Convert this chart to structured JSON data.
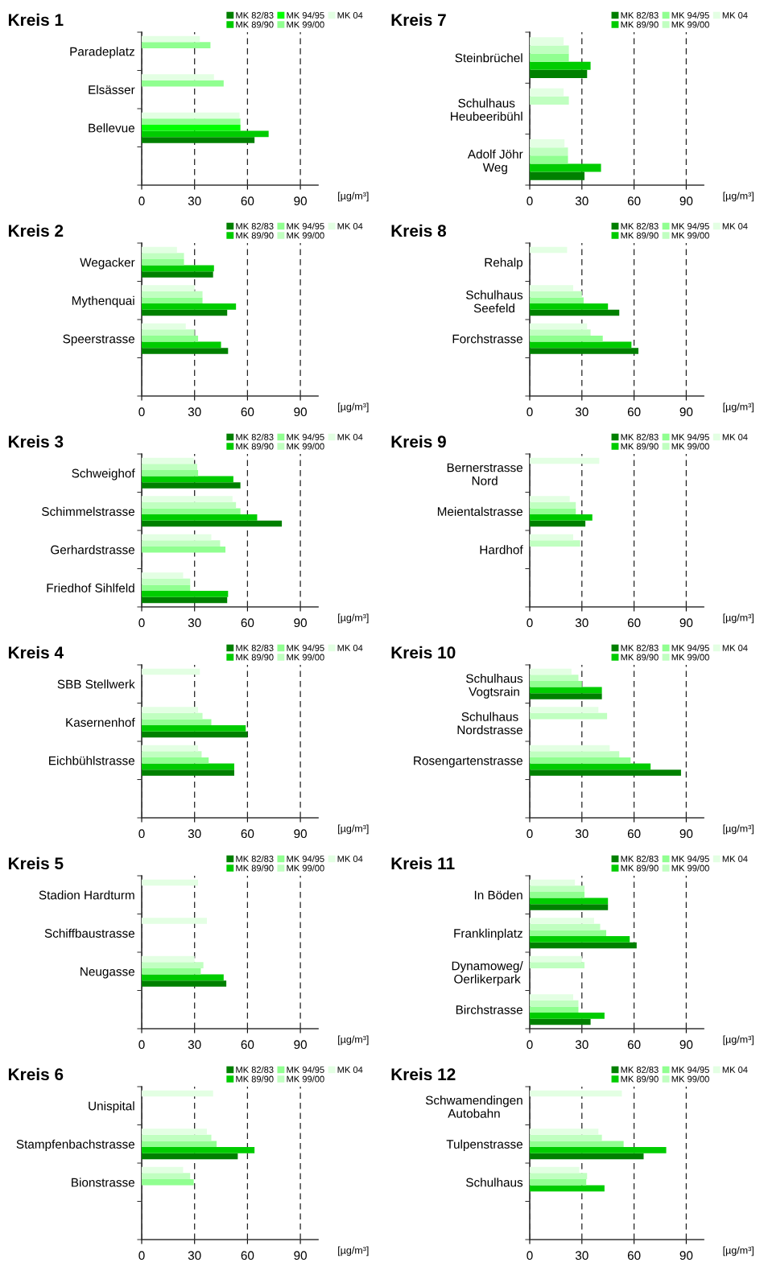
{
  "chart_data": [
    {
      "type": "bar",
      "orientation": "horizontal",
      "title": "Kreis 1",
      "xlabel": "[µg/m³]",
      "categories": [
        "Paradeplatz",
        "Elsässer",
        "Bellevue",
        null
      ],
      "xlim": [
        0,
        100
      ],
      "xticks": [
        0,
        30,
        60,
        90
      ],
      "grid": "x",
      "legend": "top right",
      "series": [
        {
          "name": "MK 82/83",
          "color": "#008000",
          "values": [
            null,
            null,
            64,
            null
          ]
        },
        {
          "name": "MK 89/90",
          "color": "#00cc00",
          "values": [
            null,
            null,
            72,
            null
          ]
        },
        {
          "name": "MK 94/95",
          "color": "#00ff00",
          "values": [
            null,
            null,
            56,
            null
          ]
        },
        {
          "name": "MK 99/00",
          "color": "#90ff90",
          "values": [
            39,
            46.5,
            56,
            null
          ]
        },
        {
          "name": "MK 04",
          "color": "#e3ffe3",
          "values": [
            33,
            41,
            55.5,
            null
          ]
        }
      ]
    },
    {
      "type": "bar",
      "orientation": "horizontal",
      "title": "Kreis 7",
      "xlabel": "[µg/m³]",
      "categories": [
        "Steinbrüchel",
        "Schulhaus\nHeubeeribühl",
        "Adolf Jöhr\nWeg"
      ],
      "xlim": [
        0,
        100
      ],
      "xticks": [
        0,
        30,
        60,
        90
      ],
      "grid": "x",
      "legend": "top right",
      "series": [
        {
          "name": "MK 82/83",
          "color": "#008000",
          "values": [
            33,
            null,
            31.5
          ]
        },
        {
          "name": "MK 89/90",
          "color": "#00cc00",
          "values": [
            35,
            null,
            41
          ]
        },
        {
          "name": "MK 94/95",
          "color": "#90ff90",
          "values": [
            22.5,
            null,
            22
          ]
        },
        {
          "name": "MK 99/00",
          "color": "#c0ffc0",
          "values": [
            22.5,
            22.5,
            22
          ]
        },
        {
          "name": "MK 04",
          "color": "#e3ffe3",
          "values": [
            19.5,
            19.5,
            20
          ]
        }
      ]
    },
    {
      "type": "bar",
      "orientation": "horizontal",
      "title": "Kreis 2",
      "xlabel": "[µg/m³]",
      "categories": [
        "Wegacker",
        "Mythenquai",
        "Speerstrasse",
        null
      ],
      "xlim": [
        0,
        100
      ],
      "xticks": [
        0,
        30,
        60,
        90
      ],
      "grid": "x",
      "legend": "top right",
      "series": [
        {
          "name": "MK 82/83",
          "color": "#008000",
          "values": [
            40.5,
            48.5,
            49,
            null
          ]
        },
        {
          "name": "MK 89/90",
          "color": "#00cc00",
          "values": [
            41,
            53.5,
            45,
            null
          ]
        },
        {
          "name": "MK 94/95",
          "color": "#90ff90",
          "values": [
            24,
            34.5,
            32,
            null
          ]
        },
        {
          "name": "MK 99/00",
          "color": "#c0ffc0",
          "values": [
            24,
            34.5,
            30,
            null
          ]
        },
        {
          "name": "MK 04",
          "color": "#e3ffe3",
          "values": [
            20,
            30,
            25,
            null
          ]
        }
      ]
    },
    {
      "type": "bar",
      "orientation": "horizontal",
      "title": "Kreis 8",
      "xlabel": "[µg/m³]",
      "categories": [
        "Rehalp",
        "Schulhaus\nSeefeld",
        "Forchstrasse",
        null
      ],
      "xlim": [
        0,
        100
      ],
      "xticks": [
        0,
        30,
        60,
        90
      ],
      "grid": "x",
      "legend": "top right",
      "series": [
        {
          "name": "MK 82/83",
          "color": "#008000",
          "values": [
            null,
            51.5,
            62.5,
            null
          ]
        },
        {
          "name": "MK 89/90",
          "color": "#00cc00",
          "values": [
            null,
            45,
            58.5,
            null
          ]
        },
        {
          "name": "MK 94/95",
          "color": "#90ff90",
          "values": [
            null,
            31,
            42,
            null
          ]
        },
        {
          "name": "MK 99/00",
          "color": "#c0ffc0",
          "values": [
            null,
            30,
            35,
            null
          ]
        },
        {
          "name": "MK 04",
          "color": "#e3ffe3",
          "values": [
            21.5,
            25,
            33,
            null
          ]
        }
      ]
    },
    {
      "type": "bar",
      "orientation": "horizontal",
      "title": "Kreis 3",
      "xlabel": "[µg/m³]",
      "categories": [
        "Schweighof",
        "Schimmelstrasse",
        "Gerhardstrasse",
        "Friedhof Sihlfeld"
      ],
      "xlim": [
        0,
        100
      ],
      "xticks": [
        0,
        30,
        60,
        90
      ],
      "grid": "x",
      "legend": "top right",
      "series": [
        {
          "name": "MK 82/83",
          "color": "#008000",
          "values": [
            56,
            79.5,
            null,
            48.5
          ]
        },
        {
          "name": "MK 89/90",
          "color": "#00cc00",
          "values": [
            52,
            65.5,
            null,
            49
          ]
        },
        {
          "name": "MK 94/95",
          "color": "#90ff90",
          "values": [
            32,
            56,
            47.5,
            27.5
          ]
        },
        {
          "name": "MK 99/00",
          "color": "#c0ffc0",
          "values": [
            31.5,
            53.5,
            44.5,
            27.5
          ]
        },
        {
          "name": "MK 04",
          "color": "#e3ffe3",
          "values": [
            29.5,
            51.5,
            39.5,
            23.5
          ]
        }
      ]
    },
    {
      "type": "bar",
      "orientation": "horizontal",
      "title": "Kreis 9",
      "xlabel": "[µg/m³]",
      "categories": [
        "Bernerstrasse\nNord",
        "Meientalstrasse",
        "Hardhof",
        null
      ],
      "xlim": [
        0,
        100
      ],
      "xticks": [
        0,
        30,
        60,
        90
      ],
      "grid": "x",
      "legend": "top right",
      "series": [
        {
          "name": "MK 82/83",
          "color": "#008000",
          "values": [
            null,
            32,
            null,
            null
          ]
        },
        {
          "name": "MK 89/90",
          "color": "#00cc00",
          "values": [
            null,
            36,
            null,
            null
          ]
        },
        {
          "name": "MK 94/95",
          "color": "#90ff90",
          "values": [
            null,
            26.5,
            null,
            null
          ]
        },
        {
          "name": "MK 99/00",
          "color": "#c0ffc0",
          "values": [
            null,
            26.5,
            29,
            null
          ]
        },
        {
          "name": "MK 04",
          "color": "#e3ffe3",
          "values": [
            40,
            23,
            25,
            null
          ]
        }
      ]
    },
    {
      "type": "bar",
      "orientation": "horizontal",
      "title": "Kreis 4",
      "xlabel": "[µg/m³]",
      "categories": [
        "SBB Stellwerk",
        "Kasernenhof",
        "Eichbühlstrasse",
        null
      ],
      "xlim": [
        0,
        100
      ],
      "xticks": [
        0,
        30,
        60,
        90
      ],
      "grid": "x",
      "legend": "top right",
      "series": [
        {
          "name": "MK 82/83",
          "color": "#008000",
          "values": [
            null,
            60,
            52.5,
            null
          ]
        },
        {
          "name": "MK 89/90",
          "color": "#00cc00",
          "values": [
            null,
            59,
            52.5,
            null
          ]
        },
        {
          "name": "MK 94/95",
          "color": "#90ff90",
          "values": [
            null,
            39.5,
            38,
            null
          ]
        },
        {
          "name": "MK 99/00",
          "color": "#c0ffc0",
          "values": [
            null,
            34.5,
            34,
            null
          ]
        },
        {
          "name": "MK 04",
          "color": "#e3ffe3",
          "values": [
            33,
            32,
            32,
            null
          ]
        }
      ]
    },
    {
      "type": "bar",
      "orientation": "horizontal",
      "title": "Kreis 10",
      "xlabel": "[µg/m³]",
      "categories": [
        "Schulhaus\nVogtsrain",
        "Schulhaus\nNordstrasse",
        "Rosengartenstrasse",
        null
      ],
      "xlim": [
        0,
        100
      ],
      "xticks": [
        0,
        30,
        60,
        90
      ],
      "grid": "x",
      "legend": "top right",
      "series": [
        {
          "name": "MK 82/83",
          "color": "#008000",
          "values": [
            41.5,
            null,
            87,
            null
          ]
        },
        {
          "name": "MK 89/90",
          "color": "#00cc00",
          "values": [
            41.5,
            null,
            69.5,
            null
          ]
        },
        {
          "name": "MK 94/95",
          "color": "#90ff90",
          "values": [
            30,
            null,
            58,
            null
          ]
        },
        {
          "name": "MK 99/00",
          "color": "#c0ffc0",
          "values": [
            28,
            44.5,
            51.5,
            null
          ]
        },
        {
          "name": "MK 04",
          "color": "#e3ffe3",
          "values": [
            24,
            39.5,
            46,
            null
          ]
        }
      ]
    },
    {
      "type": "bar",
      "orientation": "horizontal",
      "title": "Kreis 5",
      "xlabel": "[µg/m³]",
      "categories": [
        "Stadion Hardturm",
        "Schiffbaustrasse",
        "Neugasse",
        null
      ],
      "xlim": [
        0,
        100
      ],
      "xticks": [
        0,
        30,
        60,
        90
      ],
      "grid": "x",
      "legend": "top right",
      "series": [
        {
          "name": "MK 82/83",
          "color": "#008000",
          "values": [
            null,
            null,
            48,
            null
          ]
        },
        {
          "name": "MK 89/90",
          "color": "#00cc00",
          "values": [
            null,
            null,
            46.5,
            null
          ]
        },
        {
          "name": "MK 94/95",
          "color": "#90ff90",
          "values": [
            null,
            null,
            33.5,
            null
          ]
        },
        {
          "name": "MK 99/00",
          "color": "#c0ffc0",
          "values": [
            null,
            null,
            35,
            null
          ]
        },
        {
          "name": "MK 04",
          "color": "#e3ffe3",
          "values": [
            32,
            37,
            30,
            null
          ]
        }
      ]
    },
    {
      "type": "bar",
      "orientation": "horizontal",
      "title": "Kreis 11",
      "xlabel": "[µg/m³]",
      "categories": [
        "In Böden",
        "Franklinplatz",
        "Dynamoweg/\nOerlikerpark",
        "Birchstrasse"
      ],
      "xlim": [
        0,
        100
      ],
      "xticks": [
        0,
        30,
        60,
        90
      ],
      "grid": "x",
      "legend": "top right",
      "series": [
        {
          "name": "MK 82/83",
          "color": "#008000",
          "values": [
            45,
            61.5,
            null,
            35
          ]
        },
        {
          "name": "MK 89/90",
          "color": "#00cc00",
          "values": [
            45,
            57.5,
            null,
            43
          ]
        },
        {
          "name": "MK 94/95",
          "color": "#90ff90",
          "values": [
            31.5,
            44,
            null,
            28
          ]
        },
        {
          "name": "MK 99/00",
          "color": "#c0ffc0",
          "values": [
            31.5,
            40.5,
            31.5,
            28
          ]
        },
        {
          "name": "MK 04",
          "color": "#e3ffe3",
          "values": [
            26,
            37,
            30,
            25
          ]
        }
      ]
    },
    {
      "type": "bar",
      "orientation": "horizontal",
      "title": "Kreis 6",
      "xlabel": "[µg/m³]",
      "categories": [
        "Unispital",
        "Stampfenbachstrasse",
        "Bionstrasse",
        null
      ],
      "xlim": [
        0,
        100
      ],
      "xticks": [
        0,
        30,
        60,
        90
      ],
      "grid": "x",
      "legend": "top right",
      "series": [
        {
          "name": "MK 82/83",
          "color": "#008000",
          "values": [
            null,
            54.5,
            null,
            null
          ]
        },
        {
          "name": "MK 89/90",
          "color": "#00cc00",
          "values": [
            null,
            64,
            null,
            null
          ]
        },
        {
          "name": "MK 94/95",
          "color": "#90ff90",
          "values": [
            null,
            42.5,
            29.5,
            null
          ]
        },
        {
          "name": "MK 99/00",
          "color": "#c0ffc0",
          "values": [
            null,
            39.5,
            27.5,
            null
          ]
        },
        {
          "name": "MK 04",
          "color": "#e3ffe3",
          "values": [
            40.5,
            37,
            23.5,
            null
          ]
        }
      ]
    },
    {
      "type": "bar",
      "orientation": "horizontal",
      "title": "Kreis 12",
      "xlabel": "[µg/m³]",
      "categories": [
        "Schwamendingen\nAutobahn",
        "Tulpenstrasse",
        "Schulhaus",
        null
      ],
      "xlim": [
        0,
        100
      ],
      "xticks": [
        0,
        30,
        60,
        90
      ],
      "grid": "x",
      "legend": "top right",
      "series": [
        {
          "name": "MK 82/83",
          "color": "#008000",
          "values": [
            null,
            65.5,
            null,
            null
          ]
        },
        {
          "name": "MK 89/90",
          "color": "#00cc00",
          "values": [
            null,
            78.5,
            43,
            null
          ]
        },
        {
          "name": "MK 94/95",
          "color": "#90ff90",
          "values": [
            null,
            54,
            32.5,
            null
          ]
        },
        {
          "name": "MK 99/00",
          "color": "#c0ffc0",
          "values": [
            null,
            41.5,
            33,
            null
          ]
        },
        {
          "name": "MK 04",
          "color": "#e3ffe3",
          "values": [
            53,
            39.5,
            28.5,
            null
          ]
        }
      ]
    }
  ]
}
